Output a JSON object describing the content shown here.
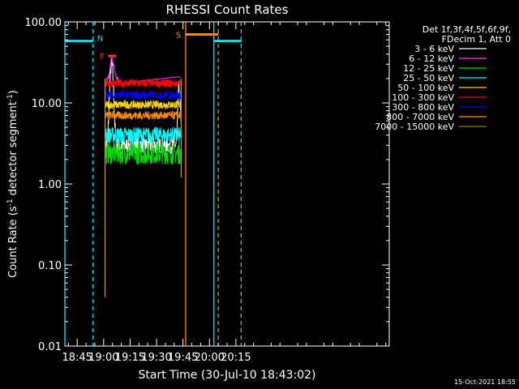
{
  "chart_data": {
    "type": "line",
    "title": "RHESSI Count Rates",
    "xlabel": "Start Time (30-Jul-10 18:43:02)",
    "ylabel": "Count Rate (s⁻¹ detector segment⁻¹)",
    "ylabel_parts": [
      "Count Rate (s",
      "-1",
      " detector segment",
      "-1",
      ")"
    ],
    "yscale": "log",
    "ylim": [
      0.01,
      100
    ],
    "yticks": [
      {
        "v": 100,
        "label": "100.00"
      },
      {
        "v": 10,
        "label": "10.00"
      },
      {
        "v": 1,
        "label": "1.00"
      },
      {
        "v": 0.1,
        "label": "0.10"
      },
      {
        "v": 0.01,
        "label": "0.01"
      }
    ],
    "xlim_min": [
      1118,
      1302
    ],
    "xticks": [
      {
        "m": 1125,
        "label": "18:45"
      },
      {
        "m": 1140,
        "label": "19:00"
      },
      {
        "m": 1155,
        "label": "19:15"
      },
      {
        "m": 1170,
        "label": "19:30"
      },
      {
        "m": 1185,
        "label": "19:45"
      },
      {
        "m": 1200,
        "label": "20:00"
      },
      {
        "m": 1215,
        "label": "20:15"
      }
    ],
    "grid": false,
    "legend_placement": "right",
    "legend_header": [
      "Det 1f,3f,4f,5f,6f,9f,",
      "FDecim 1, Att 0"
    ],
    "series": [
      {
        "name": "3 - 6 keV",
        "color": "#ffffff",
        "level": 3.0,
        "notes": "overlaps 25-100 keV bands; spike ~30 near 19:04, ~15 near 19:43"
      },
      {
        "name": "6 - 12 keV",
        "color": "#ff33ff",
        "level": 19.0
      },
      {
        "name": "12 - 25 keV",
        "color": "#00dd00",
        "level": 2.4
      },
      {
        "name": "25 - 50 keV",
        "color": "#00ffff",
        "level": 4.0
      },
      {
        "name": "50 - 100 keV",
        "color": "#ffd700",
        "level": 9.5
      },
      {
        "name": "100 - 300 keV",
        "color": "#ff0000",
        "level": 17.5
      },
      {
        "name": "300 - 800 keV",
        "color": "#0000ff",
        "level": 12.5
      },
      {
        "name": "800 - 7000 keV",
        "color": "#ff8800",
        "level": 7.0
      },
      {
        "name": "7000 - 15000 keV",
        "color": "#808000",
        "level": 3.0
      }
    ],
    "data_span_min": [
      1140.8,
      1184.0
    ],
    "annotations": [
      {
        "label": "N",
        "color": "#00e5ff"
      },
      {
        "label": "F",
        "color": "#ff3030"
      },
      {
        "label": "S",
        "color": "#ff8800"
      }
    ],
    "night_bars": [
      {
        "color": "#00e5ff",
        "from": 1118,
        "to": 1134,
        "value": 58
      },
      {
        "color": "#00e5ff",
        "from": 1202.5,
        "to": 1218,
        "value": 58
      },
      {
        "color": "#ff8800",
        "from": 1186.5,
        "to": 1205,
        "value": 70
      }
    ],
    "flare_bar": {
      "color": "#ff3030",
      "from": 1142.5,
      "to": 1147,
      "value": 38
    },
    "vlines": [
      {
        "m": 1118,
        "color": "#00e5ff",
        "style": "solid"
      },
      {
        "m": 1134,
        "color": "#00e5ff",
        "style": "dashed"
      },
      {
        "m": 1202.5,
        "color": "#00e5ff",
        "style": "solid"
      },
      {
        "m": 1218,
        "color": "#00e5ff",
        "style": "dashed"
      },
      {
        "m": 1186.5,
        "color": "#ff8800",
        "style": "solid"
      },
      {
        "m": 1205,
        "color": "#ff8800",
        "style": "dashed"
      },
      {
        "m": 1140.8,
        "color": "#ff8800",
        "style": "solid",
        "from": 0.04,
        "to": 20
      },
      {
        "m": 1184.0,
        "color": "#ff8800",
        "style": "solid",
        "from": 1.2,
        "to": 20
      }
    ],
    "timestamp": "15-Oct-2021 18:55"
  }
}
